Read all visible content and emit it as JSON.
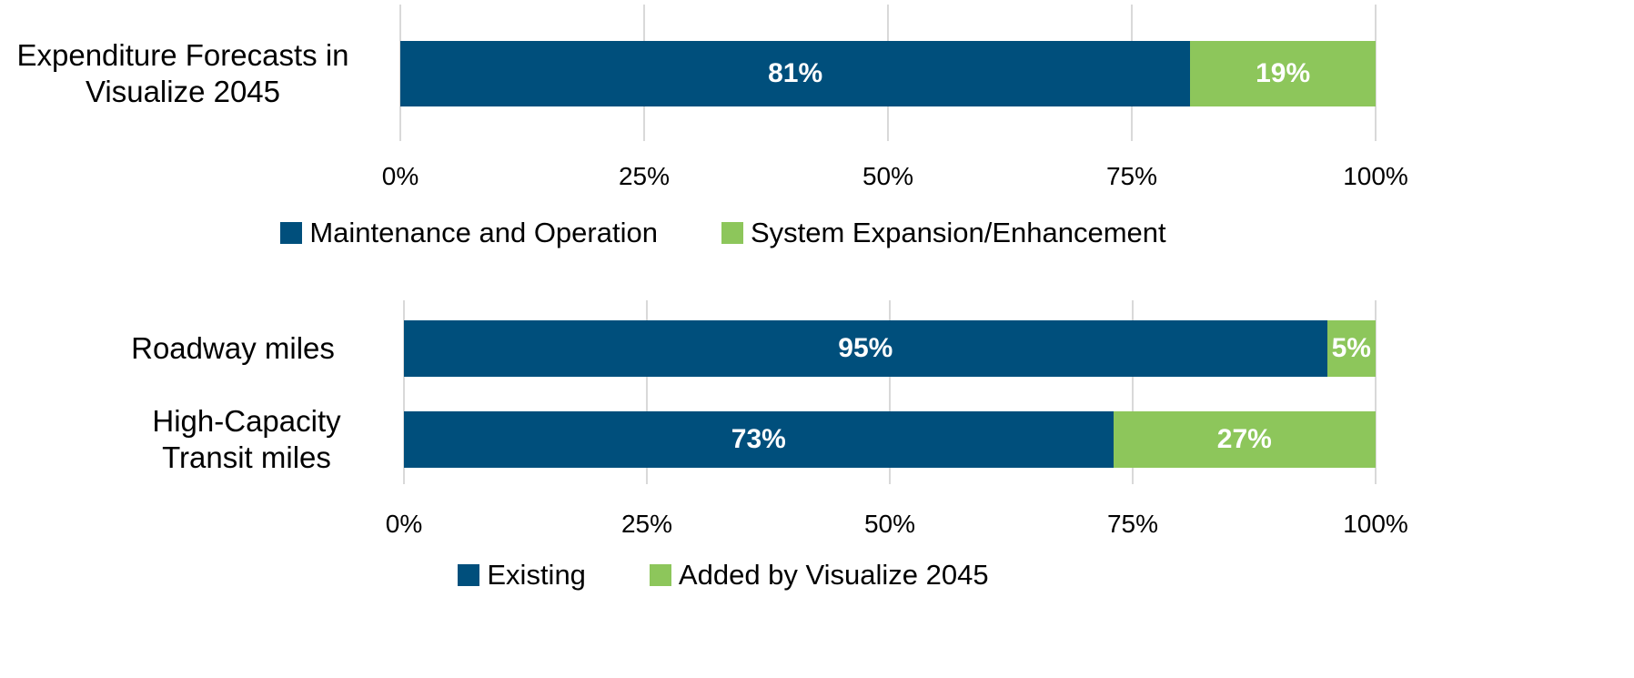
{
  "chart_data": [
    {
      "type": "bar",
      "orientation": "horizontal",
      "stacked": true,
      "categories": [
        "Expenditure Forecasts in Visualize 2045"
      ],
      "series": [
        {
          "name": "Maintenance and Operation",
          "color": "#004f7c",
          "values": [
            81
          ],
          "value_labels": [
            "81%"
          ]
        },
        {
          "name": "System Expansion/Enhancement",
          "color": "#8dc65b",
          "values": [
            19
          ],
          "value_labels": [
            "19%"
          ]
        }
      ],
      "xlim": [
        0,
        100
      ],
      "xticks": [
        {
          "value": 0,
          "label": "0%"
        },
        {
          "value": 25,
          "label": "25%"
        },
        {
          "value": 50,
          "label": "50%"
        },
        {
          "value": 75,
          "label": "75%"
        },
        {
          "value": 100,
          "label": "100%"
        }
      ],
      "grid": true,
      "legend": "bottom"
    },
    {
      "type": "bar",
      "orientation": "horizontal",
      "stacked": true,
      "categories": [
        "Roadway miles",
        "High-Capacity Transit miles"
      ],
      "series": [
        {
          "name": "Existing",
          "color": "#004f7c",
          "values": [
            95,
            73
          ],
          "value_labels": [
            "95%",
            "73%"
          ]
        },
        {
          "name": "Added by Visualize 2045",
          "color": "#8dc65b",
          "values": [
            5,
            27
          ],
          "value_labels": [
            "5%",
            "27%"
          ]
        }
      ],
      "xlim": [
        0,
        100
      ],
      "xticks": [
        {
          "value": 0,
          "label": "0%"
        },
        {
          "value": 25,
          "label": "25%"
        },
        {
          "value": 50,
          "label": "50%"
        },
        {
          "value": 75,
          "label": "75%"
        },
        {
          "value": 100,
          "label": "100%"
        }
      ],
      "grid": true,
      "legend": "bottom"
    }
  ]
}
